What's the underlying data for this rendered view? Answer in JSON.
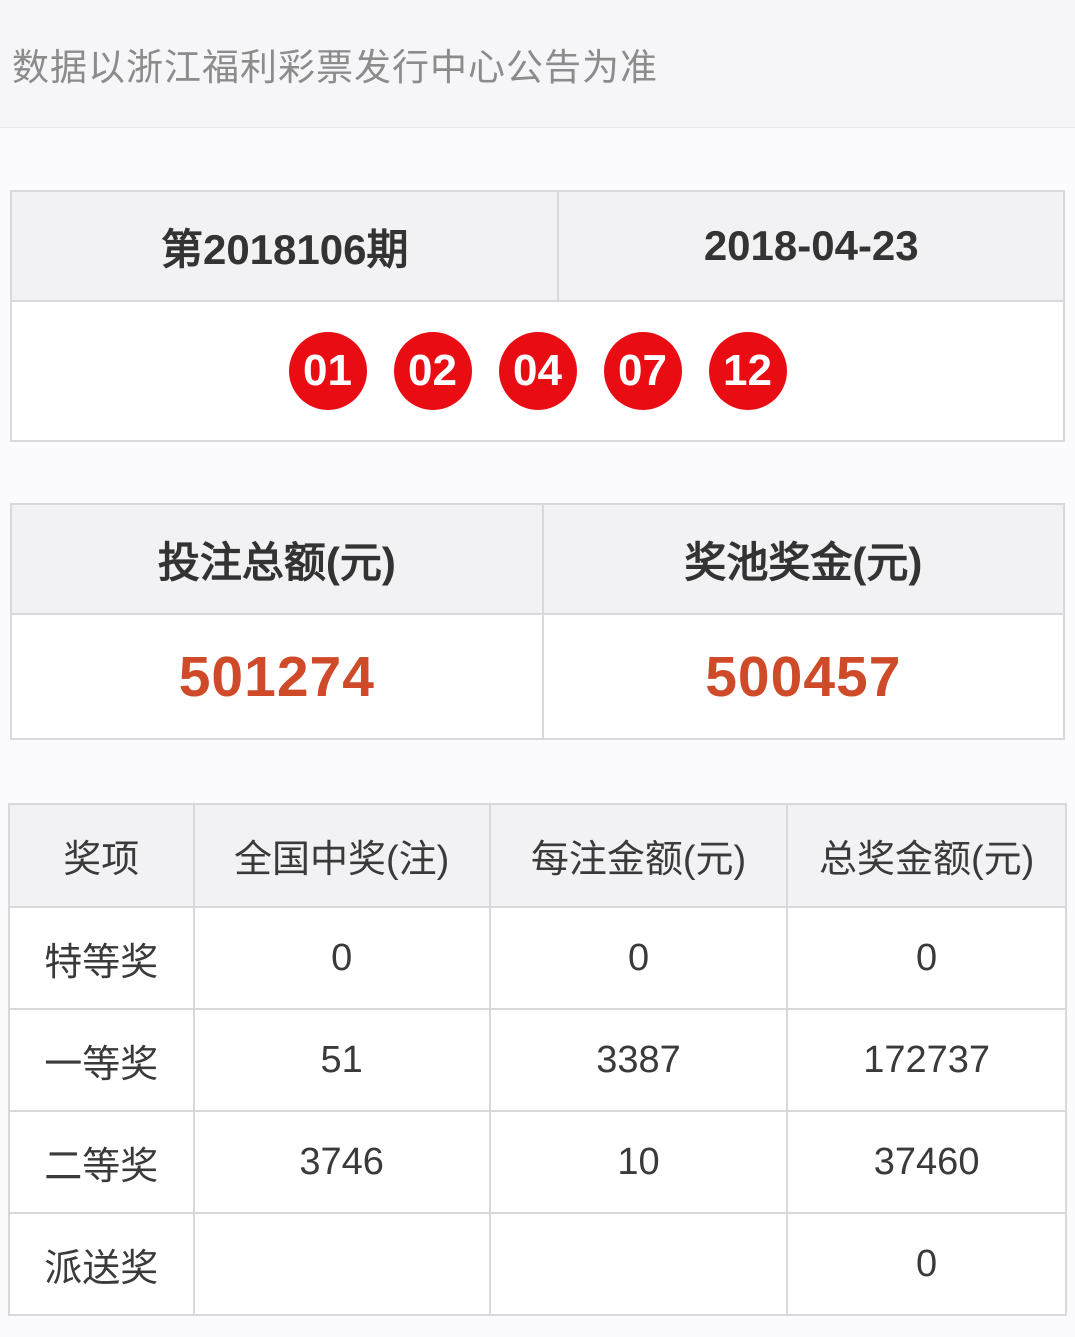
{
  "page": {
    "notice": "数据以浙江福利彩票发行中心公告为准"
  },
  "draw": {
    "period": "第2018106期",
    "date": "2018-04-23",
    "numbers": [
      "01",
      "02",
      "04",
      "07",
      "12"
    ]
  },
  "summary": {
    "bet_total_label": "投注总额(元)",
    "bet_total_value": "501274",
    "pool_label": "奖池奖金(元)",
    "pool_value": "500457"
  },
  "prize_table": {
    "headers": [
      "奖项",
      "全国中奖(注)",
      "每注金额(元)",
      "总奖金额(元)"
    ],
    "rows": [
      {
        "name": "特等奖",
        "count": "0",
        "per": "0",
        "total": "0"
      },
      {
        "name": "一等奖",
        "count": "51",
        "per": "3387",
        "total": "172737"
      },
      {
        "name": "二等奖",
        "count": "3746",
        "per": "10",
        "total": "37460"
      },
      {
        "name": "派送奖",
        "count": "",
        "per": "",
        "total": "0"
      }
    ]
  },
  "colors": {
    "ball_red": "#ea0c13",
    "amount_orange": "#ce4a28"
  }
}
